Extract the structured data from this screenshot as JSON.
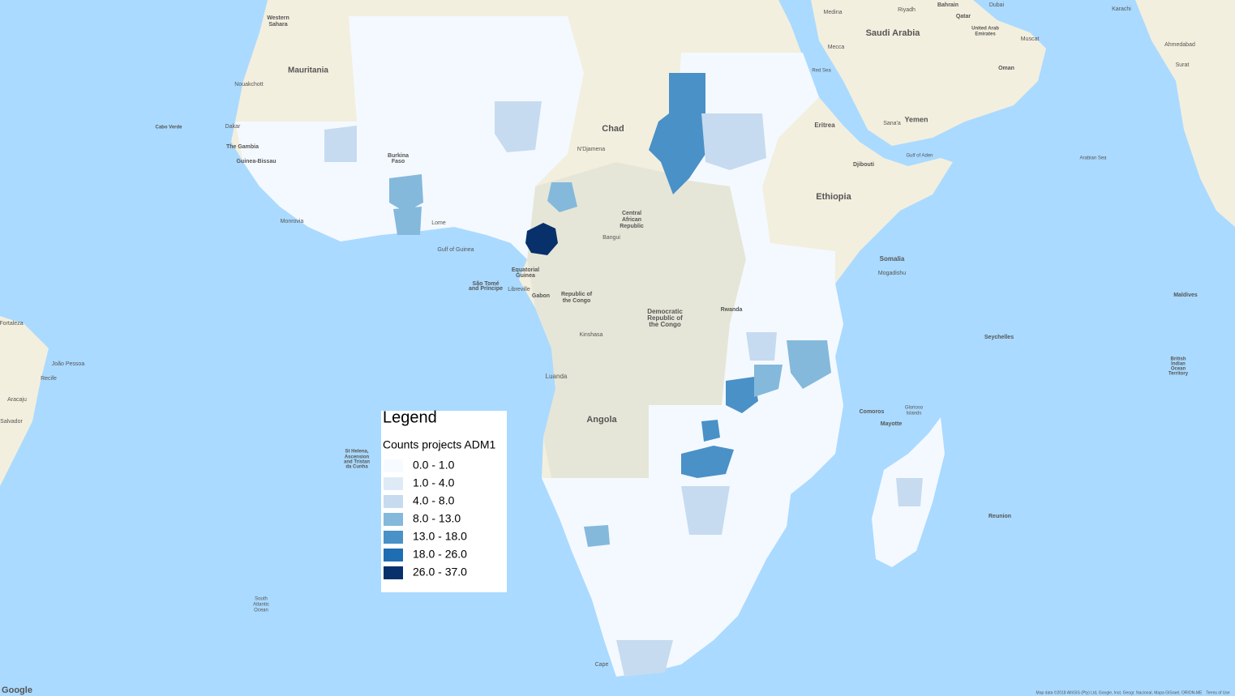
{
  "legend": {
    "title": "Legend",
    "subtitle": "Counts projects ADM1",
    "items": [
      {
        "label": "0.0 - 1.0",
        "color": "#f7fbff"
      },
      {
        "label": "1.0 - 4.0",
        "color": "#deebf7"
      },
      {
        "label": "4.0 - 8.0",
        "color": "#c6dbef"
      },
      {
        "label": "8.0 - 13.0",
        "color": "#84b9dc"
      },
      {
        "label": "13.0 - 18.0",
        "color": "#4a91c7"
      },
      {
        "label": "18.0 - 26.0",
        "color": "#1f6db3"
      },
      {
        "label": "26.0 - 37.0",
        "color": "#08306b"
      }
    ]
  },
  "labels": [
    "Western",
    "Sahara",
    "Mauritania",
    "Nouakchott",
    "Dakar",
    "The Gambia",
    "Guinea-Bissau",
    "Cabo Verde",
    "Burkina",
    "Faso",
    "Monrovia",
    "Lome",
    "Gulf of Guinea",
    "Chad",
    "N'Djamena",
    "Central",
    "African",
    "Republic",
    "Bangui",
    "Equatorial",
    "Guinea",
    "São Tomé",
    "and Príncipe",
    "Libreville",
    "Gabon",
    "Republic of",
    "the Congo",
    "Democratic",
    "Republic of",
    "the Congo",
    "Kinshasa",
    "Luanda",
    "Angola",
    "Rwanda",
    "Eritrea",
    "Djibouti",
    "Ethiopia",
    "Somalia",
    "Mogadishu",
    "Saudi Arabia",
    "Medina",
    "Riyadh",
    "Mecca",
    "Yemen",
    "Sana'a",
    "Red Sea",
    "Gulf of Aden",
    "Arabian Sea",
    "Bahrain",
    "Qatar",
    "Dubai",
    "United Arab",
    "Emirates",
    "Muscat",
    "Oman",
    "Karachi",
    "Ahmedabad",
    "Surat",
    "Comoros",
    "Mayotte",
    "Glorioso",
    "Islands",
    "Seychelles",
    "Maldives",
    "British",
    "Indian",
    "Ocean",
    "Territory",
    "Reunion",
    "South",
    "Atlantic",
    "Ocean",
    "St Helena,",
    "Ascension",
    "and Tristan",
    "da Cunha",
    "Cape",
    "Fortaleza",
    "Recife",
    "Salvador",
    "Aracaju",
    "João Pessoa",
    "Google",
    "Map data ©2018 AfriGIS (Pty) Ltd, Google, Inst. Geogr. Nacional, Mapa GISrael, ORION-ME",
    "Terms of Use"
  ]
}
